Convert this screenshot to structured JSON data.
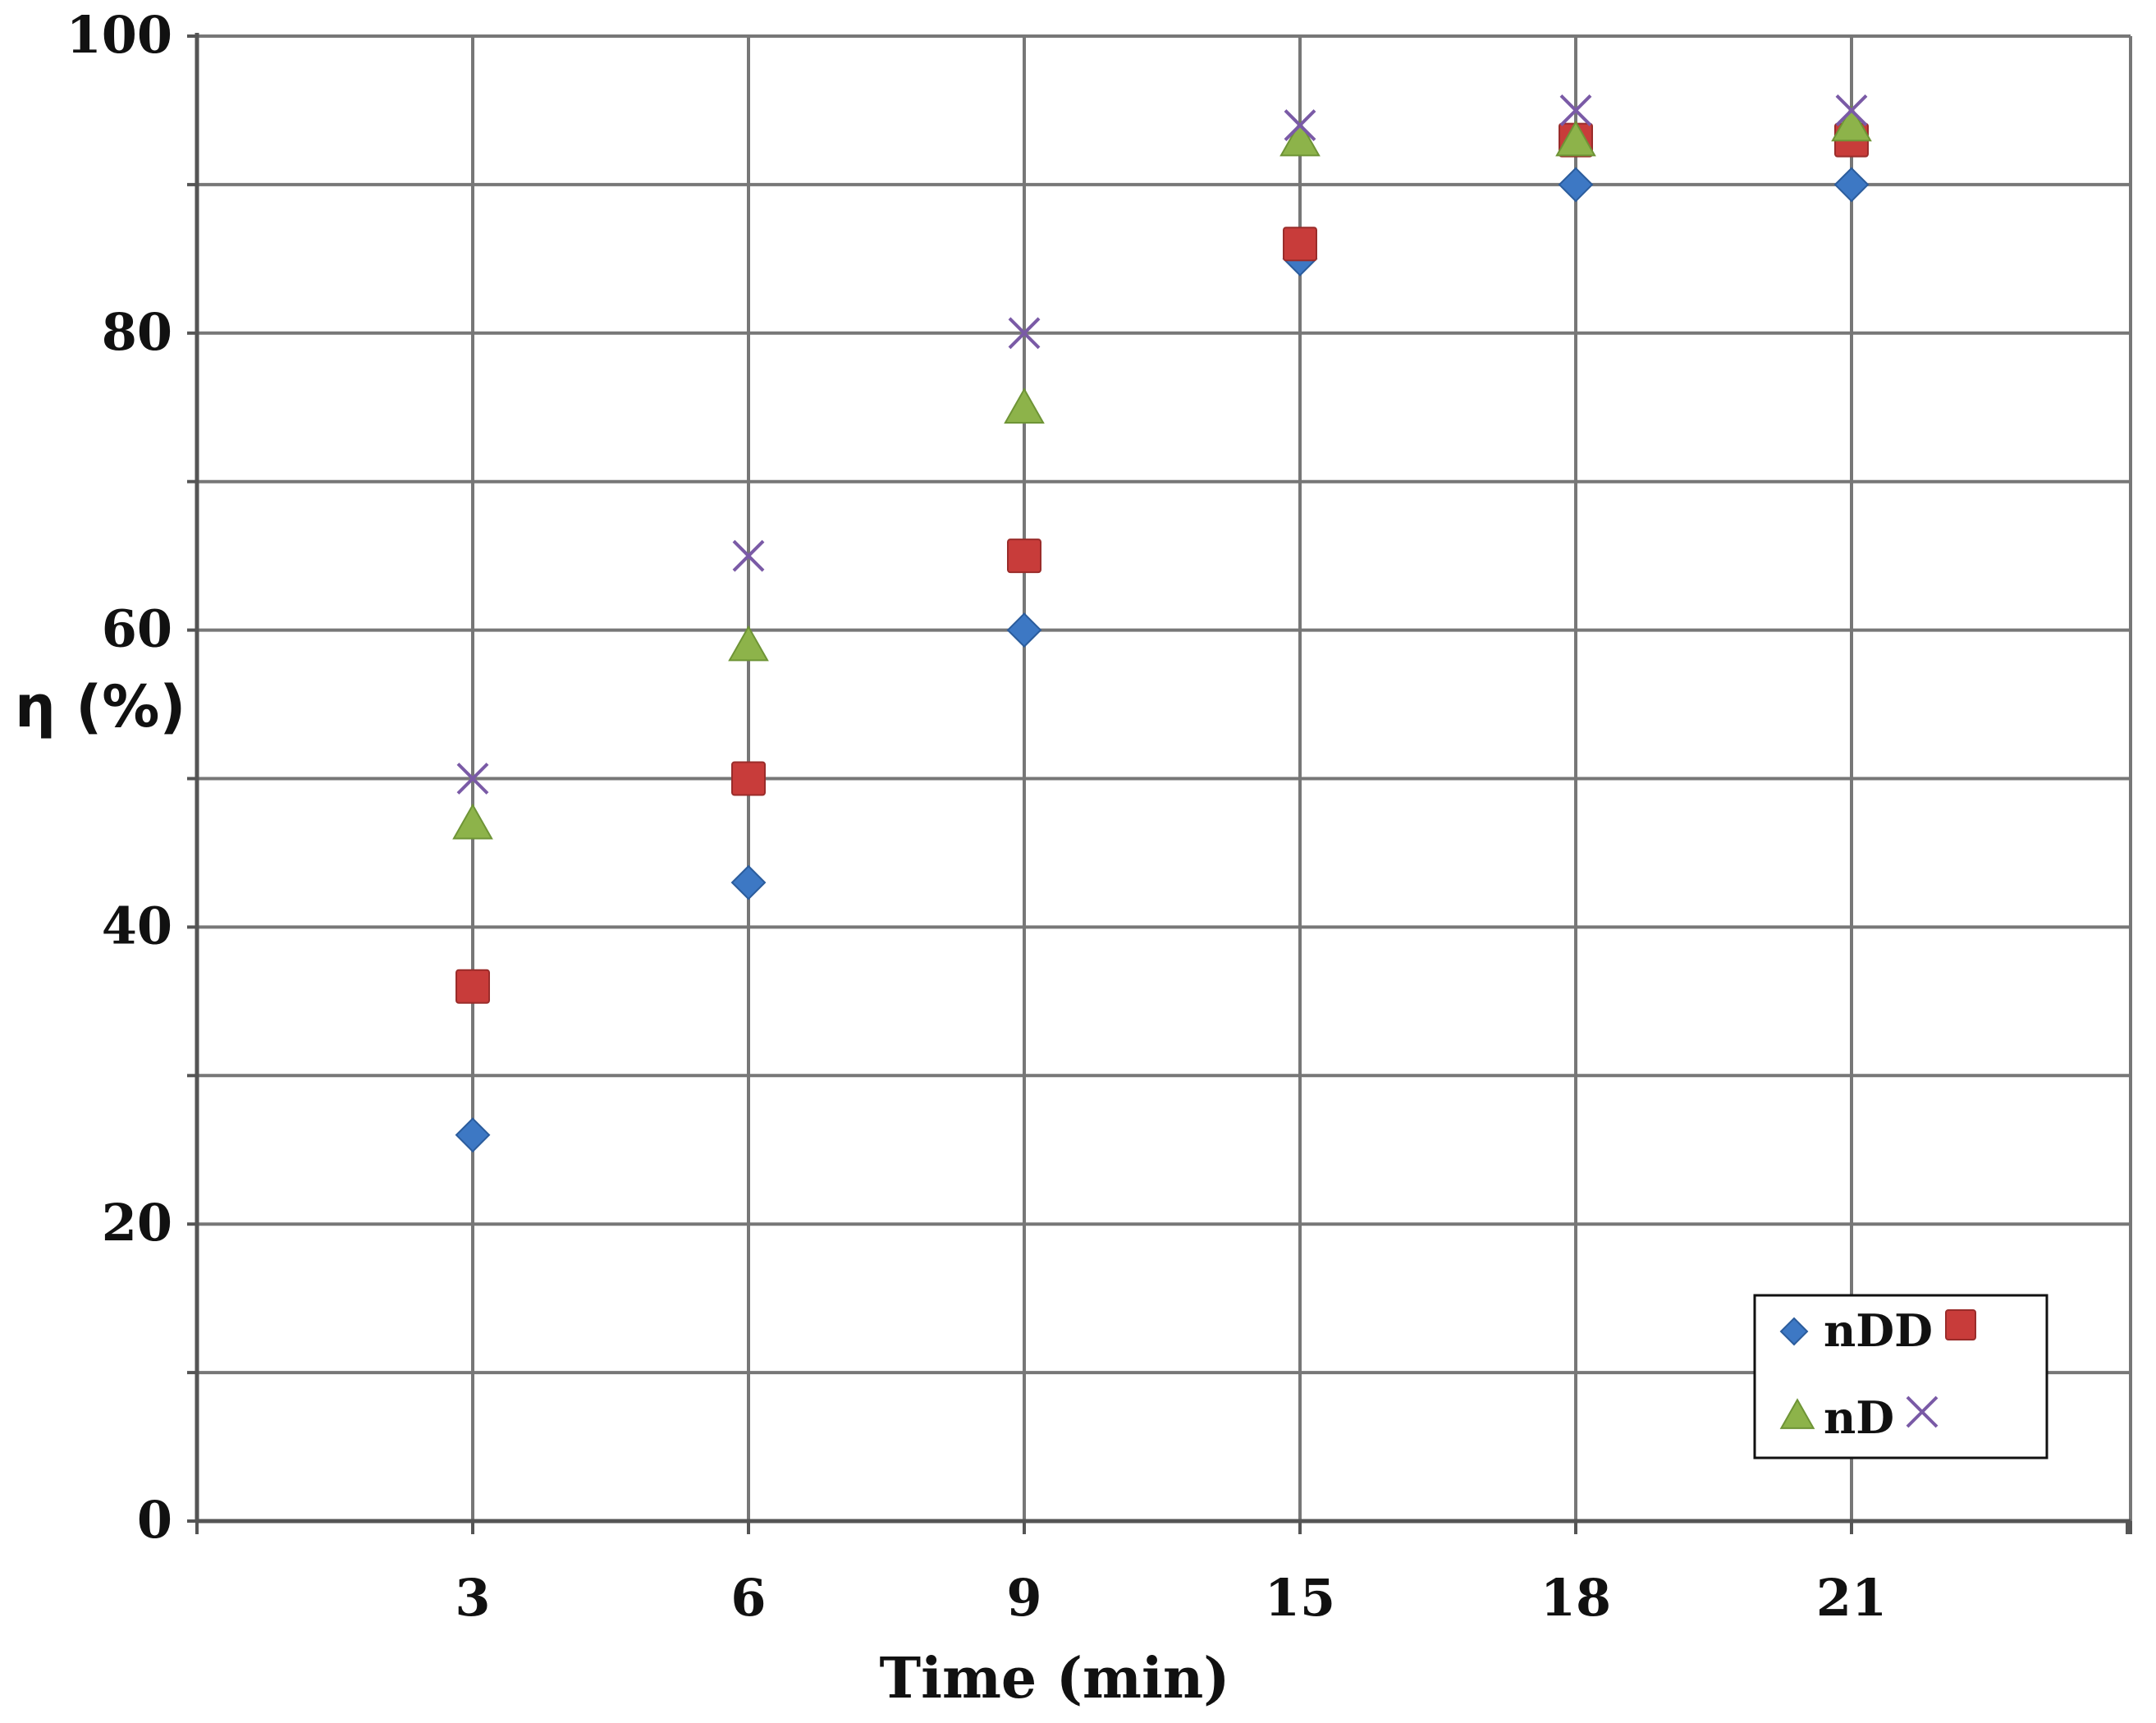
{
  "chart_data": {
    "type": "scatter",
    "title": "",
    "xlabel": "Time (min)",
    "ylabel": "η (%)",
    "categories": [
      "3",
      "6",
      "9",
      "15",
      "18",
      "21"
    ],
    "x_axis": "categorical",
    "ylim": [
      0,
      100
    ],
    "y_ticks": [
      "0",
      "20",
      "40",
      "60",
      "80",
      "100"
    ],
    "y_minor_gridlines": [
      10,
      30,
      50,
      70,
      90
    ],
    "grid": true,
    "legend_position": "bottom-right",
    "legend_rows": [
      {
        "label": "nDD",
        "markers": [
          "diamond",
          "square"
        ]
      },
      {
        "label": "nD",
        "markers": [
          "triangle",
          "x"
        ]
      }
    ],
    "series": [
      {
        "marker": "diamond",
        "color": "#3d78c4",
        "values": [
          26,
          43,
          60,
          85,
          90,
          90
        ]
      },
      {
        "marker": "square",
        "color": "#c83c3a",
        "values": [
          36,
          50,
          65,
          86,
          93,
          93
        ]
      },
      {
        "marker": "triangle",
        "color": "#8db34a",
        "values": [
          47,
          59,
          75,
          93,
          93,
          94
        ]
      },
      {
        "marker": "x",
        "color": "#7a5aa6",
        "values": [
          50,
          65,
          80,
          94,
          95,
          95
        ]
      }
    ]
  }
}
